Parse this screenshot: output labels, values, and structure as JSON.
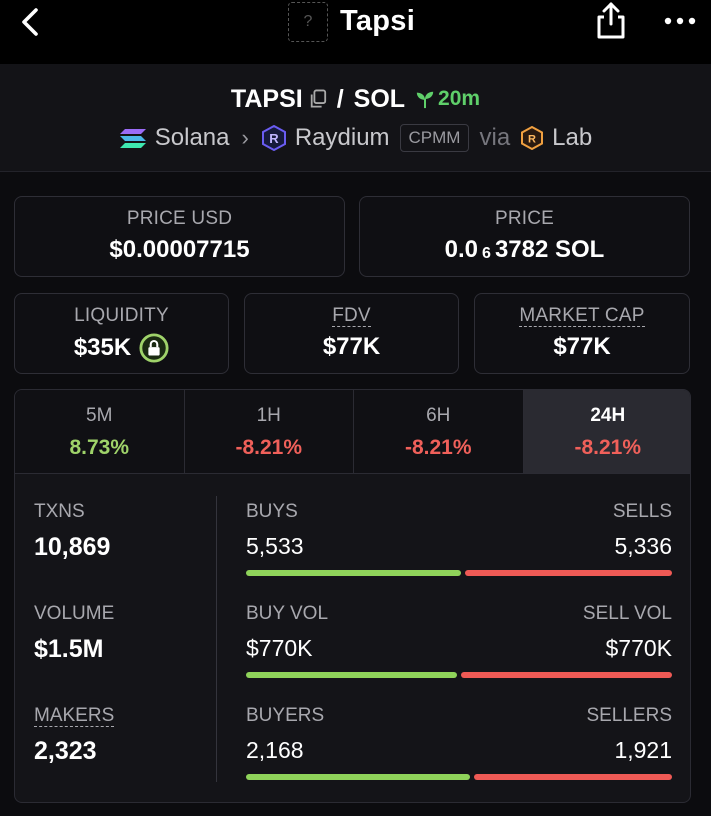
{
  "top_bar": {
    "title": "Tapsi",
    "token_icon_placeholder": "?"
  },
  "pair": {
    "base": "TAPSI",
    "separator": "/",
    "quote": "SOL",
    "age": "20m"
  },
  "route": {
    "chain": "Solana",
    "dex": "Raydium",
    "pool_type": "CPMM",
    "via_label": "via",
    "launchpad": "Lab"
  },
  "metrics": {
    "price_usd": {
      "label": "PRICE USD",
      "value": "$0.00007715"
    },
    "price_native": {
      "label": "PRICE",
      "prefix": "0.0",
      "zeros": "6",
      "suffix": "3782 SOL"
    },
    "liquidity": {
      "label": "LIQUIDITY",
      "value": "$35K",
      "locked": true
    },
    "fdv": {
      "label": "FDV",
      "value": "$77K"
    },
    "market_cap": {
      "label": "MARKET CAP",
      "value": "$77K"
    }
  },
  "timeframes": [
    {
      "label": "5M",
      "change": "8.73%",
      "trend": "positive"
    },
    {
      "label": "1H",
      "change": "-8.21%",
      "trend": "negative"
    },
    {
      "label": "6H",
      "change": "-8.21%",
      "trend": "negative"
    },
    {
      "label": "24H",
      "change": "-8.21%",
      "trend": "negative",
      "active": true
    }
  ],
  "stats": {
    "txns": {
      "label": "TXNS",
      "value": "10,869"
    },
    "volume": {
      "label": "VOLUME",
      "value": "$1.5M"
    },
    "makers": {
      "label": "MAKERS",
      "value": "2,323"
    }
  },
  "splits": {
    "txns": {
      "left_label": "BUYS",
      "right_label": "SELLS",
      "left_value": "5,533",
      "right_value": "5,336",
      "left_fraction": 0.509
    },
    "volume": {
      "left_label": "BUY VOL",
      "right_label": "SELL VOL",
      "left_value": "$770K",
      "right_value": "$770K",
      "left_fraction": 0.5
    },
    "makers": {
      "left_label": "BUYERS",
      "right_label": "SELLERS",
      "left_value": "2,168",
      "right_value": "1,921",
      "left_fraction": 0.53
    }
  },
  "colors": {
    "positive": "#9fd36a",
    "negative": "#f0605a",
    "buy_bar": "#8fd35a",
    "sell_bar": "#ef5a55",
    "age": "#5fcf6a"
  },
  "icons": [
    "back-chevron-icon",
    "share-icon",
    "more-icon",
    "copy-icon",
    "seedling-icon",
    "solana-icon",
    "raydium-icon",
    "lab-icon",
    "lock-icon"
  ]
}
